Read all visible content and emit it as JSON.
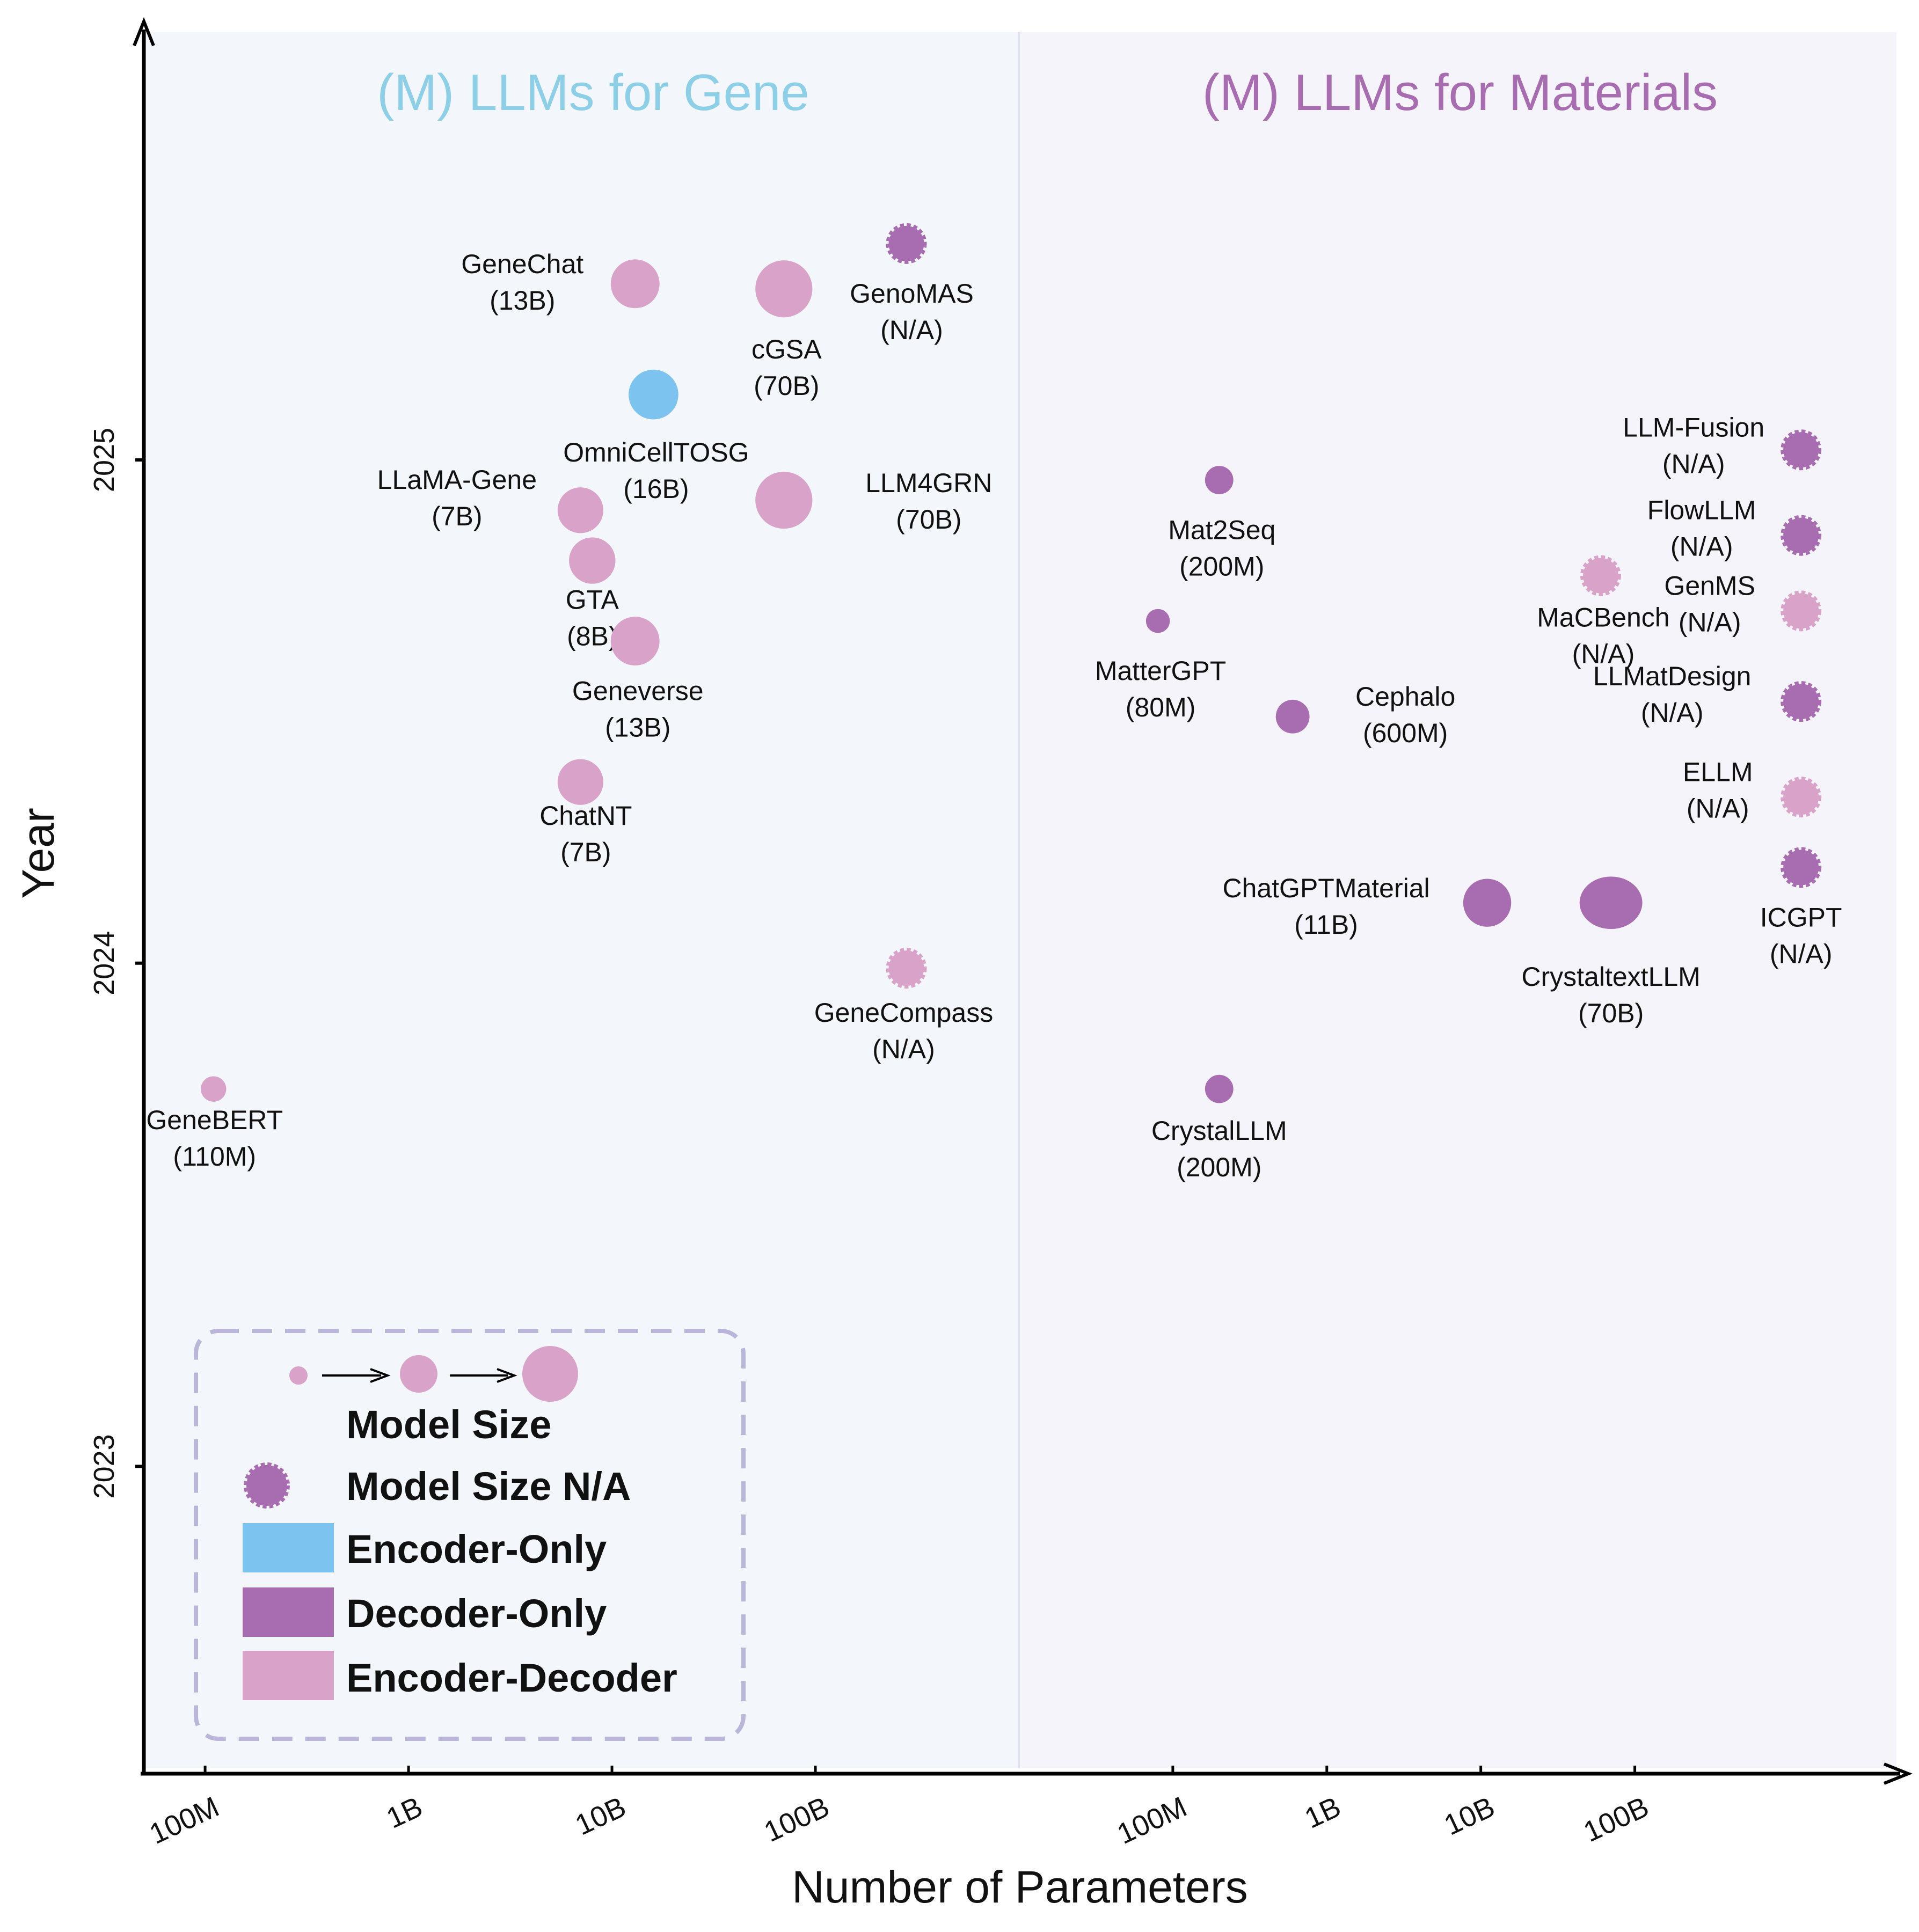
{
  "colors": {
    "encoder_only": "#7cc3f0",
    "decoder_only": "#a86db1",
    "encoder_decoder": "#d9a2c9",
    "gene_panel_bg": "#f3f7fb",
    "materials_panel_bg": "#f5f4fa",
    "gene_title": "#8ecfe8",
    "materials_title": "#a86db1",
    "legend_border": "#b9b6d9"
  },
  "chart_data": {
    "type": "scatter",
    "subtype": "bubble",
    "xlabel": "Number of Parameters",
    "ylabel": "Year",
    "x_scale": "log",
    "xlim": [
      10000000,
      5000000000000
    ],
    "ylim": [
      2022.4,
      2025.85
    ],
    "y_ticks": [
      {
        "value": 2023,
        "label": "2023"
      },
      {
        "value": 2024,
        "label": "2024"
      },
      {
        "value": 2025,
        "label": "2025"
      }
    ],
    "panels": [
      {
        "id": "gene",
        "title": "(M) LLMs for Gene",
        "x_range": [
          50000000,
          1000000000000
        ],
        "x_ticks": [
          {
            "value": 100000000,
            "label": "100M"
          },
          {
            "value": 1000000000,
            "label": "1B"
          },
          {
            "value": 10000000000,
            "label": "10B"
          },
          {
            "value": 100000000000,
            "label": "100B"
          }
        ],
        "models": [
          {
            "name": "GeneChat",
            "size_label": "(13B)",
            "params": 13000000000,
            "year": 2025.35,
            "arch": "encoder_decoder",
            "known": true
          },
          {
            "name": "cGSA",
            "size_label": "(70B)",
            "params": 70000000000,
            "year": 2025.34,
            "arch": "encoder_decoder",
            "known": true
          },
          {
            "name": "GenoMAS",
            "size_label": "(N/A)",
            "params": 280000000000,
            "year": 2025.43,
            "arch": "decoder_only",
            "known": false
          },
          {
            "name": "OmniCellTOSG",
            "size_label": "(16B)",
            "params": 16000000000,
            "year": 2025.13,
            "arch": "encoder_only",
            "known": true
          },
          {
            "name": "LLM4GRN",
            "size_label": "(70B)",
            "params": 70000000000,
            "year": 2024.92,
            "arch": "encoder_decoder",
            "known": true
          },
          {
            "name": "LLaMA-Gene",
            "size_label": "(7B)",
            "params": 7000000000,
            "year": 2024.9,
            "arch": "encoder_decoder",
            "known": true
          },
          {
            "name": "GTA",
            "size_label": "(8B)",
            "params": 8000000000,
            "year": 2024.8,
            "arch": "encoder_decoder",
            "known": true
          },
          {
            "name": "Geneverse",
            "size_label": "(13B)",
            "params": 13000000000,
            "year": 2024.64,
            "arch": "encoder_decoder",
            "known": true
          },
          {
            "name": "ChatNT",
            "size_label": "(7B)",
            "params": 7000000000,
            "year": 2024.36,
            "arch": "encoder_decoder",
            "known": true
          },
          {
            "name": "GeneCompass",
            "size_label": "(N/A)",
            "params": 280000000000,
            "year": 2023.99,
            "arch": "encoder_decoder",
            "known": false
          },
          {
            "name": "GeneBERT",
            "size_label": "(110M)",
            "params": 110000000,
            "year": 2023.75,
            "arch": "encoder_decoder",
            "known": true
          }
        ]
      },
      {
        "id": "materials",
        "title": "(M) LLMs for Materials",
        "x_range": [
          10000000,
          5000000000000
        ],
        "x_ticks": [
          {
            "value": 100000000,
            "label": "100M"
          },
          {
            "value": 1000000000,
            "label": "1B"
          },
          {
            "value": 10000000000,
            "label": "10B"
          },
          {
            "value": 100000000000,
            "label": "100B"
          }
        ],
        "models": [
          {
            "name": "Mat2Seq",
            "size_label": "(200M)",
            "params": 200000000,
            "year": 2024.96,
            "arch": "decoder_only",
            "known": true
          },
          {
            "name": "MatterGPT",
            "size_label": "(80M)",
            "params": 80000000,
            "year": 2024.68,
            "arch": "decoder_only",
            "known": true
          },
          {
            "name": "Cephalo",
            "size_label": "(600M)",
            "params": 600000000,
            "year": 2024.49,
            "arch": "decoder_only",
            "known": true
          },
          {
            "name": "ChatGPTMaterial",
            "size_label": "(11B)",
            "params": 11000000000,
            "year": 2024.12,
            "arch": "decoder_only",
            "known": true
          },
          {
            "name": "CrystaltextLLM",
            "size_label": "(70B)",
            "params": 70000000000,
            "year": 2024.12,
            "arch": "decoder_only",
            "known": true
          },
          {
            "name": "CrystalLLM",
            "size_label": "(200M)",
            "params": 200000000,
            "year": 2023.75,
            "arch": "decoder_only",
            "known": true
          },
          {
            "name": "MaCBench",
            "size_label": "(N/A)",
            "params": 60000000000,
            "year": 2024.77,
            "arch": "encoder_decoder",
            "known": false
          },
          {
            "name": "LLM-Fusion",
            "size_label": "(N/A)",
            "params": 1200000000000,
            "year": 2025.02,
            "arch": "decoder_only",
            "known": false
          },
          {
            "name": "FlowLLM",
            "size_label": "(N/A)",
            "params": 1200000000000,
            "year": 2024.85,
            "arch": "decoder_only",
            "known": false
          },
          {
            "name": "GenMS",
            "size_label": "(N/A)",
            "params": 1200000000000,
            "year": 2024.7,
            "arch": "encoder_decoder",
            "known": false
          },
          {
            "name": "LLMatDesign",
            "size_label": "(N/A)",
            "params": 1200000000000,
            "year": 2024.52,
            "arch": "decoder_only",
            "known": false
          },
          {
            "name": "ELLM",
            "size_label": "(N/A)",
            "params": 1200000000000,
            "year": 2024.33,
            "arch": "encoder_decoder",
            "known": false
          },
          {
            "name": "ICGPT",
            "size_label": "(N/A)",
            "params": 1200000000000,
            "year": 2024.19,
            "arch": "decoder_only",
            "known": false
          }
        ]
      }
    ],
    "legend": {
      "placement": "bottom-left",
      "items": [
        {
          "kind": "size_scale",
          "label": "Model Size"
        },
        {
          "kind": "na_marker",
          "label": "Model Size N/A",
          "arch": "decoder_only"
        },
        {
          "kind": "swatch",
          "label": "Encoder-Only",
          "arch": "encoder_only"
        },
        {
          "kind": "swatch",
          "label": "Decoder-Only",
          "arch": "decoder_only"
        },
        {
          "kind": "swatch",
          "label": "Encoder-Decoder",
          "arch": "encoder_decoder"
        }
      ]
    }
  }
}
